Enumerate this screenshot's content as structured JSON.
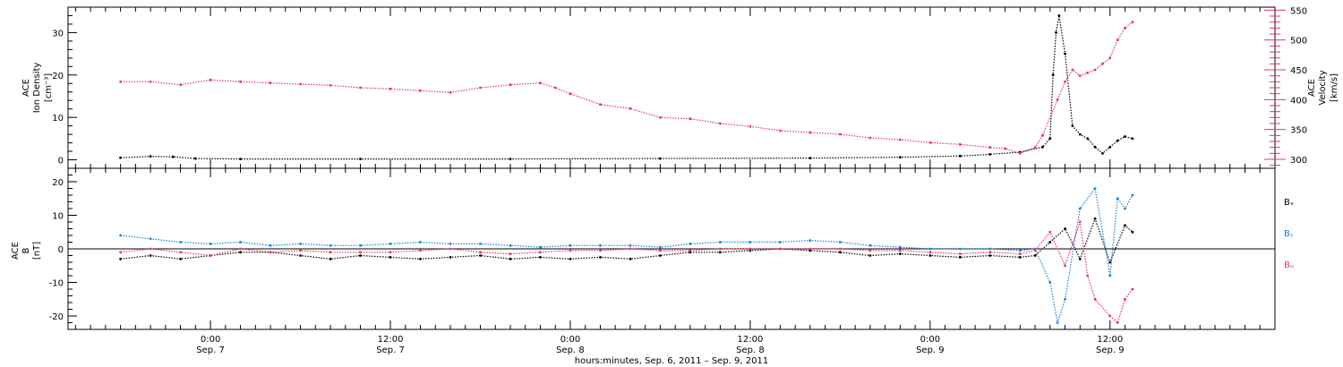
{
  "chart_data": [
    {
      "type": "scatter",
      "panel": "top",
      "left_axis": {
        "label_lines": [
          "ACE",
          "Ion Density",
          "[cm⁻³]"
        ],
        "ylim": [
          -2,
          36
        ],
        "ticks": [
          "0",
          "10",
          "20",
          "30"
        ]
      },
      "right_axis": {
        "label_lines": [
          "ACE",
          "Velocity",
          "[km/s]"
        ],
        "ylim": [
          285,
          555
        ],
        "ticks": [
          "300",
          "350",
          "400",
          "450",
          "500",
          "550"
        ],
        "color": "#e8336b"
      },
      "series": [
        {
          "name": "Ion Density",
          "axis": "left",
          "color": "#000000",
          "points": [
            [
              -6.0,
              0.5
            ],
            [
              -4.0,
              0.8
            ],
            [
              -2.5,
              0.7
            ],
            [
              -1.0,
              0.3
            ],
            [
              2.0,
              0.2
            ],
            [
              10.0,
              0.2
            ],
            [
              20.0,
              0.2
            ],
            [
              30.0,
              0.3
            ],
            [
              40.0,
              0.4
            ],
            [
              46.0,
              0.6
            ],
            [
              50.0,
              0.9
            ],
            [
              52.0,
              1.3
            ],
            [
              54.0,
              1.8
            ],
            [
              55.5,
              3.0
            ],
            [
              56.0,
              5.0
            ],
            [
              56.2,
              20.0
            ],
            [
              56.4,
              30.0
            ],
            [
              56.6,
              34.0
            ],
            [
              57.0,
              25.0
            ],
            [
              57.5,
              8.0
            ],
            [
              58.0,
              6.0
            ],
            [
              58.5,
              5.0
            ],
            [
              59.0,
              3.0
            ],
            [
              59.5,
              1.5
            ],
            [
              60.0,
              3.0
            ],
            [
              60.5,
              4.5
            ],
            [
              61.0,
              5.5
            ],
            [
              61.5,
              5.0
            ]
          ]
        },
        {
          "name": "Velocity",
          "axis": "right",
          "color": "#e8336b",
          "points": [
            [
              -6.0,
              430
            ],
            [
              -4.0,
              430
            ],
            [
              -2.0,
              425
            ],
            [
              0.0,
              433
            ],
            [
              2.0,
              430
            ],
            [
              4.0,
              428
            ],
            [
              6.0,
              426
            ],
            [
              8.0,
              424
            ],
            [
              10.0,
              420
            ],
            [
              12.0,
              418
            ],
            [
              14.0,
              415
            ],
            [
              16.0,
              412
            ],
            [
              18.0,
              420
            ],
            [
              20.0,
              425
            ],
            [
              22.0,
              428
            ],
            [
              23.0,
              420
            ],
            [
              24.0,
              410
            ],
            [
              26.0,
              392
            ],
            [
              28.0,
              385
            ],
            [
              30.0,
              370
            ],
            [
              32.0,
              368
            ],
            [
              34.0,
              360
            ],
            [
              36.0,
              355
            ],
            [
              38.0,
              348
            ],
            [
              40.0,
              345
            ],
            [
              42.0,
              342
            ],
            [
              44.0,
              336
            ],
            [
              46.0,
              333
            ],
            [
              48.0,
              328
            ],
            [
              50.0,
              325
            ],
            [
              52.0,
              320
            ],
            [
              53.0,
              318
            ],
            [
              54.0,
              310
            ],
            [
              55.0,
              320
            ],
            [
              55.5,
              340
            ],
            [
              56.5,
              400
            ],
            [
              57.0,
              430
            ],
            [
              57.5,
              450
            ],
            [
              58.0,
              440
            ],
            [
              58.5,
              445
            ],
            [
              59.0,
              450
            ],
            [
              59.5,
              460
            ],
            [
              60.0,
              470
            ],
            [
              60.5,
              500
            ],
            [
              61.0,
              520
            ],
            [
              61.5,
              530
            ]
          ]
        }
      ]
    },
    {
      "type": "scatter",
      "panel": "bottom",
      "left_axis": {
        "label_lines": [
          "ACE",
          "B",
          "[nT]"
        ],
        "ylim": [
          -24,
          24
        ],
        "ticks": [
          "-20",
          "-10",
          "0",
          "10",
          "20"
        ]
      },
      "series": [
        {
          "name": "Bₓ",
          "color": "#000000",
          "points": [
            [
              -6.0,
              -3.0
            ],
            [
              -4.0,
              -2.0
            ],
            [
              -2.0,
              -3.0
            ],
            [
              0.0,
              -2.0
            ],
            [
              2.0,
              -1.0
            ],
            [
              4.0,
              -1.0
            ],
            [
              6.0,
              -2.0
            ],
            [
              8.0,
              -3.0
            ],
            [
              10.0,
              -2.0
            ],
            [
              12.0,
              -2.5
            ],
            [
              14.0,
              -3.0
            ],
            [
              16.0,
              -2.5
            ],
            [
              18.0,
              -2.0
            ],
            [
              20.0,
              -3.0
            ],
            [
              22.0,
              -2.5
            ],
            [
              24.0,
              -3.0
            ],
            [
              26.0,
              -2.5
            ],
            [
              28.0,
              -3.0
            ],
            [
              30.0,
              -2.0
            ],
            [
              32.0,
              -1.0
            ],
            [
              34.0,
              -1.0
            ],
            [
              36.0,
              -0.5
            ],
            [
              38.0,
              0.0
            ],
            [
              40.0,
              -0.5
            ],
            [
              42.0,
              -1.0
            ],
            [
              44.0,
              -2.0
            ],
            [
              46.0,
              -1.5
            ],
            [
              48.0,
              -2.0
            ],
            [
              50.0,
              -2.5
            ],
            [
              52.0,
              -2.0
            ],
            [
              54.0,
              -2.5
            ],
            [
              55.0,
              -2.0
            ],
            [
              56.0,
              2.0
            ],
            [
              57.0,
              6.0
            ],
            [
              58.0,
              -3.0
            ],
            [
              59.0,
              9.0
            ],
            [
              60.0,
              -4.0
            ],
            [
              61.0,
              7.0
            ],
            [
              61.5,
              5.0
            ]
          ]
        },
        {
          "name": "Bᵧ",
          "color": "#1a7fd9",
          "points": [
            [
              -6.0,
              4.0
            ],
            [
              -4.0,
              3.0
            ],
            [
              -2.0,
              2.0
            ],
            [
              0.0,
              1.5
            ],
            [
              2.0,
              2.0
            ],
            [
              4.0,
              1.0
            ],
            [
              6.0,
              1.5
            ],
            [
              8.0,
              1.0
            ],
            [
              10.0,
              1.0
            ],
            [
              12.0,
              1.5
            ],
            [
              14.0,
              2.0
            ],
            [
              16.0,
              1.5
            ],
            [
              18.0,
              1.5
            ],
            [
              20.0,
              1.0
            ],
            [
              22.0,
              0.5
            ],
            [
              24.0,
              1.0
            ],
            [
              26.0,
              1.0
            ],
            [
              28.0,
              1.0
            ],
            [
              30.0,
              0.5
            ],
            [
              32.0,
              1.5
            ],
            [
              34.0,
              2.0
            ],
            [
              36.0,
              2.0
            ],
            [
              38.0,
              2.0
            ],
            [
              40.0,
              2.5
            ],
            [
              42.0,
              2.0
            ],
            [
              44.0,
              1.0
            ],
            [
              46.0,
              0.5
            ],
            [
              48.0,
              0.0
            ],
            [
              50.0,
              0.0
            ],
            [
              52.0,
              0.0
            ],
            [
              54.0,
              -0.5
            ],
            [
              55.0,
              0.0
            ],
            [
              56.0,
              -10.0
            ],
            [
              56.5,
              -22.0
            ],
            [
              57.0,
              -15.0
            ],
            [
              58.0,
              12.0
            ],
            [
              59.0,
              18.0
            ],
            [
              60.0,
              -8.0
            ],
            [
              60.5,
              15.0
            ],
            [
              61.0,
              12.0
            ],
            [
              61.5,
              16.0
            ]
          ]
        },
        {
          "name": "Bᵤ",
          "color": "#e8336b",
          "points": [
            [
              -6.0,
              -1.0
            ],
            [
              -4.0,
              0.0
            ],
            [
              -2.0,
              -1.0
            ],
            [
              0.0,
              -2.0
            ],
            [
              2.0,
              0.0
            ],
            [
              4.0,
              -1.0
            ],
            [
              6.0,
              -0.5
            ],
            [
              8.0,
              -1.0
            ],
            [
              10.0,
              -1.0
            ],
            [
              12.0,
              -1.0
            ],
            [
              14.0,
              -0.5
            ],
            [
              16.0,
              0.0
            ],
            [
              18.0,
              -1.0
            ],
            [
              20.0,
              -1.5
            ],
            [
              22.0,
              -1.0
            ],
            [
              24.0,
              -0.5
            ],
            [
              26.0,
              -0.5
            ],
            [
              28.0,
              0.0
            ],
            [
              30.0,
              -0.5
            ],
            [
              32.0,
              -0.5
            ],
            [
              34.0,
              0.0
            ],
            [
              36.0,
              0.0
            ],
            [
              38.0,
              0.0
            ],
            [
              40.0,
              0.0
            ],
            [
              42.0,
              0.0
            ],
            [
              44.0,
              -0.5
            ],
            [
              46.0,
              -0.5
            ],
            [
              48.0,
              -1.0
            ],
            [
              50.0,
              -1.5
            ],
            [
              52.0,
              -1.0
            ],
            [
              54.0,
              -1.5
            ],
            [
              55.0,
              -0.5
            ],
            [
              56.0,
              5.0
            ],
            [
              57.0,
              -5.0
            ],
            [
              58.0,
              8.0
            ],
            [
              58.5,
              -8.0
            ],
            [
              59.0,
              -15.0
            ],
            [
              60.0,
              -20.0
            ],
            [
              60.5,
              -22.0
            ],
            [
              61.0,
              -15.0
            ],
            [
              61.5,
              -12.0
            ]
          ]
        }
      ]
    }
  ],
  "x_axis": {
    "xlim": [
      -9.5,
      71
    ],
    "ticks": [
      {
        "x": 0,
        "time": "0:00",
        "date": "Sep. 7"
      },
      {
        "x": 12,
        "time": "12:00",
        "date": "Sep. 7"
      },
      {
        "x": 24,
        "time": "0:00",
        "date": "Sep. 8"
      },
      {
        "x": 36,
        "time": "12:00",
        "date": "Sep. 8"
      },
      {
        "x": 48,
        "time": "0:00",
        "date": "Sep. 9"
      },
      {
        "x": 60,
        "time": "12:00",
        "date": "Sep. 9"
      }
    ],
    "title": "hours:minutes, Sep.  6, 2011 – Sep.  9, 2011"
  }
}
